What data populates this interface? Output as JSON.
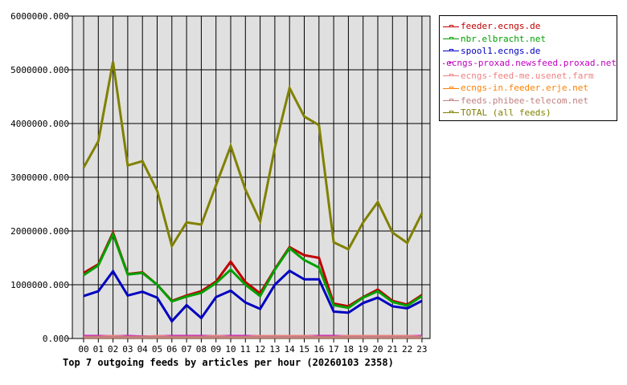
{
  "chart_data": {
    "type": "line",
    "title": "Top 7 outgoing feeds by articles per hour (20260103 2358)",
    "xlabel": "",
    "ylabel": "",
    "ylim": [
      0,
      6000000
    ],
    "grid": true,
    "legend_position": "right",
    "y_ticks": [
      "0.000",
      "1000000.000",
      "2000000.000",
      "3000000.000",
      "4000000.000",
      "5000000.000",
      "6000000.000"
    ],
    "categories": [
      "00",
      "01",
      "02",
      "03",
      "04",
      "05",
      "06",
      "07",
      "08",
      "09",
      "10",
      "11",
      "12",
      "13",
      "14",
      "15",
      "16",
      "17",
      "18",
      "19",
      "20",
      "21",
      "22",
      "23"
    ],
    "series": [
      {
        "name": "feeder.ecngs.de",
        "color": "#c00000",
        "values": [
          1220000,
          1380000,
          1970000,
          1200000,
          1230000,
          1000000,
          700000,
          800000,
          880000,
          1060000,
          1430000,
          1050000,
          840000,
          1290000,
          1700000,
          1550000,
          1500000,
          650000,
          600000,
          770000,
          910000,
          700000,
          630000,
          810000
        ]
      },
      {
        "name": "nbr.elbracht.net",
        "color": "#00a000",
        "values": [
          1180000,
          1360000,
          1940000,
          1190000,
          1220000,
          1000000,
          690000,
          780000,
          850000,
          1030000,
          1280000,
          1000000,
          790000,
          1280000,
          1680000,
          1460000,
          1320000,
          620000,
          570000,
          760000,
          880000,
          680000,
          610000,
          790000
        ]
      },
      {
        "name": "spool1.ecngs.de",
        "color": "#0000c0",
        "values": [
          790000,
          880000,
          1250000,
          800000,
          870000,
          760000,
          320000,
          620000,
          380000,
          770000,
          890000,
          670000,
          550000,
          1000000,
          1260000,
          1100000,
          1100000,
          500000,
          480000,
          660000,
          760000,
          600000,
          560000,
          700000
        ]
      },
      {
        "name": "ecngs-proxad.newsfeed.proxad.net",
        "color": "#c000c0",
        "values": [
          45000,
          45000,
          40000,
          45000,
          35000,
          40000,
          45000,
          45000,
          45000,
          40000,
          45000,
          45000,
          40000,
          40000,
          40000,
          40000,
          45000,
          45000,
          40000,
          40000,
          40000,
          40000,
          40000,
          45000
        ]
      },
      {
        "name": "ecngs-feed-me.usenet.farm",
        "color": "#f08080",
        "values": [
          30000,
          30000,
          45000,
          30000,
          30000,
          45000,
          30000,
          30000,
          30000,
          45000,
          30000,
          30000,
          45000,
          45000,
          45000,
          45000,
          30000,
          30000,
          45000,
          45000,
          45000,
          45000,
          45000,
          30000
        ]
      },
      {
        "name": "ecngs-in.feeder.erje.net",
        "color": "#ff8000",
        "values": [
          20000,
          20000,
          20000,
          20000,
          20000,
          20000,
          20000,
          20000,
          20000,
          20000,
          20000,
          20000,
          20000,
          20000,
          20000,
          20000,
          20000,
          20000,
          20000,
          20000,
          20000,
          20000,
          20000,
          20000
        ]
      },
      {
        "name": "feeds.phibee-telecom.net",
        "color": "#c08080",
        "values": [
          25000,
          25000,
          25000,
          25000,
          20000,
          25000,
          25000,
          25000,
          25000,
          25000,
          25000,
          25000,
          25000,
          25000,
          25000,
          25000,
          25000,
          25000,
          25000,
          25000,
          25000,
          25000,
          25000,
          25000
        ]
      },
      {
        "name": "TOTAL (all feeds)",
        "color": "#808000",
        "values": [
          3180000,
          3670000,
          5150000,
          3220000,
          3300000,
          2750000,
          1720000,
          2160000,
          2120000,
          2850000,
          3580000,
          2770000,
          2180000,
          3550000,
          4660000,
          4130000,
          3970000,
          1790000,
          1660000,
          2160000,
          2540000,
          1970000,
          1780000,
          2330000
        ]
      }
    ]
  }
}
